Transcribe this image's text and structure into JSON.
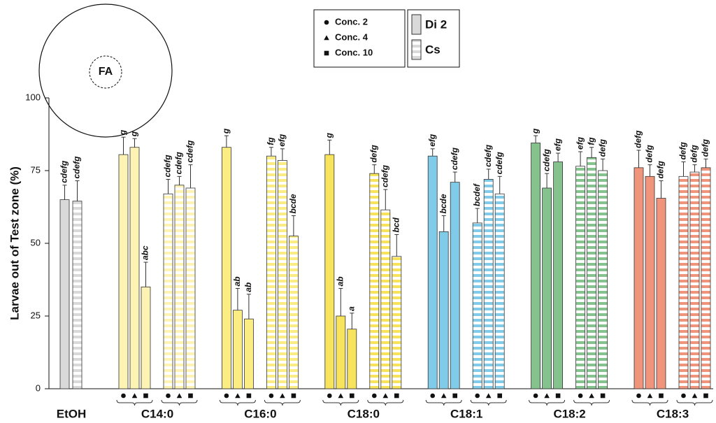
{
  "chart_data": {
    "type": "bar",
    "ylabel": "Larvae out of  Test zone (%)",
    "ylim": [
      0,
      100
    ],
    "yticks": [
      0,
      25,
      50,
      75,
      100
    ],
    "inset_label": "FA",
    "legend": {
      "concentrations": [
        "Conc.  2",
        "Conc.  4",
        "Conc. 10"
      ],
      "treatments": [
        "Di 2",
        "Cs"
      ],
      "treatment_color": "#d9d9d9"
    },
    "groups": [
      {
        "name": "EtOH",
        "color": "#d9d9d9",
        "di2": {
          "values": [
            65
          ],
          "errors": [
            5
          ],
          "letters": [
            "cdefg"
          ]
        },
        "cs": {
          "values": [
            64.5
          ],
          "errors": [
            7
          ],
          "letters": [
            "cdefg"
          ]
        }
      },
      {
        "name": "C14:0",
        "color": "#fdf3b4",
        "di2": {
          "values": [
            80.5,
            83,
            35
          ],
          "errors": [
            6,
            3,
            8.5
          ],
          "letters": [
            "g",
            "g",
            "abc"
          ]
        },
        "cs": {
          "values": [
            67,
            70,
            69
          ],
          "errors": [
            5,
            3,
            8
          ],
          "letters": [
            "cdefg",
            "cdefg",
            "cdefg"
          ]
        }
      },
      {
        "name": "C16:0",
        "color": "#fbec84",
        "di2": {
          "values": [
            83,
            27,
            24
          ],
          "errors": [
            4,
            7.5,
            8.5
          ],
          "letters": [
            "g",
            "ab",
            "ab"
          ]
        },
        "cs": {
          "values": [
            80,
            78.5,
            52.5
          ],
          "errors": [
            3,
            4,
            7
          ],
          "letters": [
            "fg",
            "efg",
            "bcde"
          ]
        }
      },
      {
        "name": "C18:0",
        "color": "#f8e45c",
        "di2": {
          "values": [
            80.5,
            25,
            20.5
          ],
          "errors": [
            5,
            9.5,
            5.5
          ],
          "letters": [
            "g",
            "ab",
            "a"
          ]
        },
        "cs": {
          "values": [
            74,
            61.5,
            45.5
          ],
          "errors": [
            3,
            7,
            7.5
          ],
          "letters": [
            "defg",
            "cdefg",
            "bcd"
          ]
        }
      },
      {
        "name": "C18:1",
        "color": "#80cce8",
        "di2": {
          "values": [
            80,
            54,
            71
          ],
          "errors": [
            2.5,
            5.5,
            3.5
          ],
          "letters": [
            "efg",
            "bcde",
            "cdefg"
          ]
        },
        "cs": {
          "values": [
            57,
            72,
            67
          ],
          "errors": [
            5,
            3.5,
            6
          ],
          "letters": [
            "bcdef",
            "cdefg",
            "cdefg"
          ]
        }
      },
      {
        "name": "C18:2",
        "color": "#85c28e",
        "di2": {
          "values": [
            84.5,
            69,
            78
          ],
          "errors": [
            2.5,
            5,
            3
          ],
          "letters": [
            "g",
            "cdefg",
            "efg"
          ]
        },
        "cs": {
          "values": [
            76.5,
            79.5,
            75
          ],
          "errors": [
            5,
            3.5,
            4
          ],
          "letters": [
            "efg",
            "fg",
            "defg"
          ]
        }
      },
      {
        "name": "C18:3",
        "color": "#f0957c",
        "di2": {
          "values": [
            76,
            73,
            65.5
          ],
          "errors": [
            6,
            4,
            6
          ],
          "letters": [
            "defg",
            "defg",
            "defg"
          ]
        },
        "cs": {
          "values": [
            73,
            74.5,
            76
          ],
          "errors": [
            5,
            2.5,
            3
          ],
          "letters": [
            "defg",
            "defg",
            "defg"
          ]
        }
      }
    ]
  }
}
